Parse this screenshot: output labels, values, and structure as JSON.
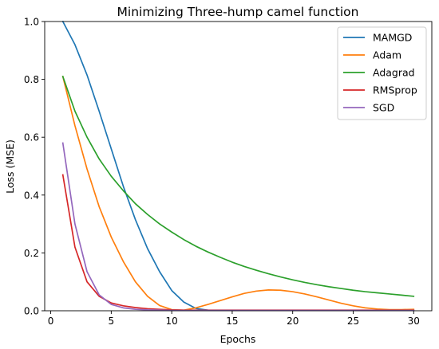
{
  "chart_data": {
    "type": "line",
    "title": "Minimizing Three-hump camel function",
    "xlabel": "Epochs",
    "ylabel": "Loss (MSE)",
    "xlim": [
      -0.5,
      31.5
    ],
    "ylim": [
      0,
      1.0
    ],
    "xticks": [
      0,
      5,
      10,
      15,
      20,
      25,
      30
    ],
    "xtick_labels": [
      "0",
      "5",
      "10",
      "15",
      "20",
      "25",
      "30"
    ],
    "yticks": [
      0,
      0.2,
      0.4,
      0.6,
      0.8,
      1.0
    ],
    "ytick_labels": [
      "0.0",
      "0.2",
      "0.4",
      "0.6",
      "0.8",
      "1.0"
    ],
    "grid": false,
    "legend_position": "top-right",
    "x": [
      1,
      2,
      3,
      4,
      5,
      6,
      7,
      8,
      9,
      10,
      11,
      12,
      13,
      14,
      15,
      16,
      17,
      18,
      19,
      20,
      21,
      22,
      23,
      24,
      25,
      26,
      27,
      28,
      29,
      30
    ],
    "series": [
      {
        "name": "MAMGD",
        "color": "#1f77b4",
        "values": [
          1.0,
          0.92,
          0.815,
          0.69,
          0.56,
          0.43,
          0.315,
          0.215,
          0.135,
          0.07,
          0.03,
          0.008,
          0.002,
          0.001,
          0.001,
          0.001,
          0.001,
          0.001,
          0.001,
          0.001,
          0.001,
          0.001,
          0.001,
          0.001,
          0.001,
          0.001,
          0.001,
          0.001,
          0.001,
          0.001
        ]
      },
      {
        "name": "Adam",
        "color": "#ff7f0e",
        "values": [
          0.81,
          0.64,
          0.49,
          0.36,
          0.255,
          0.17,
          0.1,
          0.05,
          0.018,
          0.004,
          0.002,
          0.01,
          0.022,
          0.035,
          0.048,
          0.06,
          0.068,
          0.072,
          0.071,
          0.066,
          0.058,
          0.048,
          0.037,
          0.026,
          0.017,
          0.01,
          0.006,
          0.004,
          0.004,
          0.005
        ]
      },
      {
        "name": "Adagrad",
        "color": "#2ca02c",
        "values": [
          0.81,
          0.69,
          0.6,
          0.525,
          0.465,
          0.415,
          0.37,
          0.333,
          0.3,
          0.272,
          0.246,
          0.223,
          0.203,
          0.185,
          0.168,
          0.153,
          0.14,
          0.128,
          0.117,
          0.107,
          0.098,
          0.09,
          0.083,
          0.077,
          0.071,
          0.066,
          0.062,
          0.058,
          0.054,
          0.05
        ]
      },
      {
        "name": "RMSprop",
        "color": "#d62728",
        "values": [
          0.47,
          0.22,
          0.1,
          0.05,
          0.027,
          0.017,
          0.011,
          0.007,
          0.005,
          0.003,
          0.002,
          0.002,
          0.002,
          0.002,
          0.002,
          0.002,
          0.002,
          0.002,
          0.002,
          0.002,
          0.002,
          0.002,
          0.002,
          0.002,
          0.002,
          0.002,
          0.002,
          0.002,
          0.002,
          0.002
        ]
      },
      {
        "name": "SGD",
        "color": "#9467bd",
        "values": [
          0.58,
          0.3,
          0.135,
          0.055,
          0.022,
          0.01,
          0.005,
          0.003,
          0.002,
          0.001,
          0.001,
          0.001,
          0.001,
          0.001,
          0.001,
          0.001,
          0.001,
          0.001,
          0.001,
          0.001,
          0.001,
          0.001,
          0.001,
          0.001,
          0.001,
          0.001,
          0.001,
          0.001,
          0.001,
          0.001
        ]
      }
    ]
  }
}
